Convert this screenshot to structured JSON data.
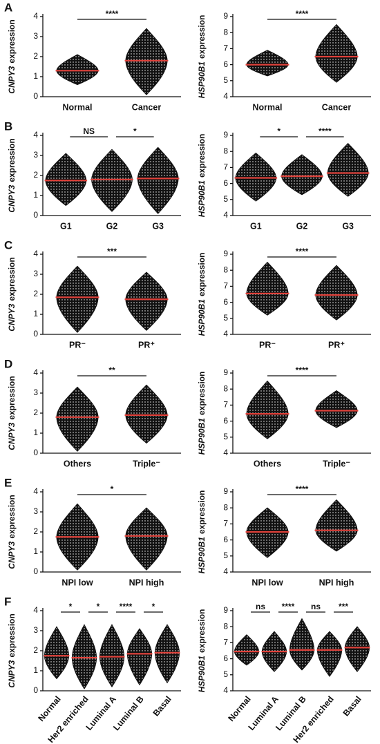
{
  "chart_data": [
    {
      "type": "swarm",
      "panel": "A",
      "ylabel_gene": "CNPY3",
      "ylabel_rest": "expression",
      "categories": [
        "Normal",
        "Cancer"
      ],
      "values": [
        1.3,
        1.8
      ],
      "ranges": [
        [
          0.6,
          2.1
        ],
        [
          0.1,
          3.4
        ]
      ],
      "ylim": [
        0,
        4
      ],
      "yticks": [
        0,
        1,
        2,
        3,
        4
      ],
      "color": "#111111",
      "median_color": "#e0413a",
      "comparisons": [
        {
          "from": "Normal",
          "to": "Cancer",
          "label": "****"
        }
      ]
    },
    {
      "type": "swarm",
      "ylabel_gene": "HSP90B1",
      "ylabel_rest": "expression",
      "categories": [
        "Normal",
        "Cancer"
      ],
      "values": [
        6.0,
        6.5
      ],
      "ranges": [
        [
          5.3,
          6.9
        ],
        [
          4.9,
          8.5
        ]
      ],
      "ylim": [
        4,
        9
      ],
      "yticks": [
        4,
        5,
        6,
        7,
        8,
        9
      ],
      "color": "#111111",
      "median_color": "#e0413a",
      "comparisons": [
        {
          "from": "Normal",
          "to": "Cancer",
          "label": "****"
        }
      ]
    },
    {
      "type": "swarm",
      "panel": "B",
      "ylabel_gene": "CNPY3",
      "ylabel_rest": "expression",
      "categories": [
        "G1",
        "G2",
        "G3"
      ],
      "values": [
        1.75,
        1.8,
        1.85
      ],
      "ranges": [
        [
          0.5,
          3.1
        ],
        [
          0.2,
          3.3
        ],
        [
          0.1,
          3.4
        ]
      ],
      "ylim": [
        0,
        4
      ],
      "yticks": [
        0,
        1,
        2,
        3,
        4
      ],
      "color": "#111111",
      "median_color": "#e0413a",
      "comparisons": [
        {
          "from": "G1",
          "to": "G2",
          "label": "NS"
        },
        {
          "from": "G2",
          "to": "G3",
          "label": "*"
        }
      ]
    },
    {
      "type": "swarm",
      "ylabel_gene": "HSP90B1",
      "ylabel_rest": "expression",
      "categories": [
        "G1",
        "G2",
        "G3"
      ],
      "values": [
        6.35,
        6.45,
        6.65
      ],
      "ranges": [
        [
          4.9,
          7.9
        ],
        [
          5.3,
          7.8
        ],
        [
          5.2,
          8.5
        ]
      ],
      "ylim": [
        4,
        9
      ],
      "yticks": [
        4,
        5,
        6,
        7,
        8,
        9
      ],
      "color": "#111111",
      "median_color": "#e0413a",
      "comparisons": [
        {
          "from": "G1",
          "to": "G2",
          "label": "*"
        },
        {
          "from": "G2",
          "to": "G3",
          "label": "****"
        }
      ]
    },
    {
      "type": "swarm",
      "panel": "C",
      "ylabel_gene": "CNPY3",
      "ylabel_rest": "expression",
      "categories": [
        "PR⁻",
        "PR⁺"
      ],
      "values": [
        1.85,
        1.75
      ],
      "ranges": [
        [
          0.1,
          3.4
        ],
        [
          0.2,
          3.1
        ]
      ],
      "ylim": [
        0,
        4
      ],
      "yticks": [
        0,
        1,
        2,
        3,
        4
      ],
      "color": "#111111",
      "median_color": "#e0413a",
      "comparisons": [
        {
          "from": "PR⁻",
          "to": "PR⁺",
          "label": "***"
        }
      ]
    },
    {
      "type": "swarm",
      "ylabel_gene": "HSP90B1",
      "ylabel_rest": "expression",
      "categories": [
        "PR⁻",
        "PR⁺"
      ],
      "values": [
        6.55,
        6.45
      ],
      "ranges": [
        [
          5.2,
          8.5
        ],
        [
          4.9,
          8.3
        ]
      ],
      "ylim": [
        4,
        9
      ],
      "yticks": [
        4,
        5,
        6,
        7,
        8,
        9
      ],
      "color": "#111111",
      "median_color": "#e0413a",
      "comparisons": [
        {
          "from": "PR⁻",
          "to": "PR⁺",
          "label": "****"
        }
      ]
    },
    {
      "type": "swarm",
      "panel": "D",
      "ylabel_gene": "CNPY3",
      "ylabel_rest": "expression",
      "categories": [
        "Others",
        "Triple⁻"
      ],
      "values": [
        1.8,
        1.9
      ],
      "ranges": [
        [
          0.1,
          3.3
        ],
        [
          0.5,
          3.4
        ]
      ],
      "ylim": [
        0,
        4
      ],
      "yticks": [
        0,
        1,
        2,
        3,
        4
      ],
      "color": "#111111",
      "median_color": "#e0413a",
      "comparisons": [
        {
          "from": "Others",
          "to": "Triple⁻",
          "label": "**"
        }
      ]
    },
    {
      "type": "swarm",
      "ylabel_gene": "HSP90B1",
      "ylabel_rest": "expression",
      "categories": [
        "Others",
        "Triple⁻"
      ],
      "values": [
        6.45,
        6.65
      ],
      "ranges": [
        [
          4.9,
          8.5
        ],
        [
          5.6,
          7.9
        ]
      ],
      "ylim": [
        4,
        9
      ],
      "yticks": [
        4,
        5,
        6,
        7,
        8,
        9
      ],
      "color": "#111111",
      "median_color": "#e0413a",
      "comparisons": [
        {
          "from": "Others",
          "to": "Triple⁻",
          "label": "****"
        }
      ]
    },
    {
      "type": "swarm",
      "panel": "E",
      "ylabel_gene": "CNPY3",
      "ylabel_rest": "expression",
      "categories": [
        "NPI low",
        "NPI high"
      ],
      "values": [
        1.75,
        1.8
      ],
      "ranges": [
        [
          0.1,
          3.4
        ],
        [
          0.1,
          3.2
        ]
      ],
      "ylim": [
        0,
        4
      ],
      "yticks": [
        0,
        1,
        2,
        3,
        4
      ],
      "color": "#111111",
      "median_color": "#e0413a",
      "comparisons": [
        {
          "from": "NPI low",
          "to": "NPI high",
          "label": "*"
        }
      ]
    },
    {
      "type": "swarm",
      "ylabel_gene": "HSP90B1",
      "ylabel_rest": "expression",
      "categories": [
        "NPI low",
        "NPI high"
      ],
      "values": [
        6.5,
        6.6
      ],
      "ranges": [
        [
          4.9,
          8.0
        ],
        [
          5.3,
          8.5
        ]
      ],
      "ylim": [
        4,
        9
      ],
      "yticks": [
        4,
        5,
        6,
        7,
        8,
        9
      ],
      "color": "#111111",
      "median_color": "#e0413a",
      "comparisons": [
        {
          "from": "NPI low",
          "to": "NPI high",
          "label": "****"
        }
      ]
    },
    {
      "type": "swarm",
      "panel": "F",
      "rotate_labels": true,
      "ylabel_gene": "CNPY3",
      "ylabel_rest": "expression",
      "categories": [
        "Normal",
        "Her2 enriched",
        "Luminal A",
        "Luminal B",
        "Basal"
      ],
      "values": [
        1.75,
        1.65,
        1.7,
        1.85,
        1.9
      ],
      "ranges": [
        [
          0.6,
          3.2
        ],
        [
          0.1,
          3.3
        ],
        [
          0.2,
          3.3
        ],
        [
          0.3,
          3.1
        ],
        [
          0.4,
          3.3
        ]
      ],
      "ylim": [
        0,
        4
      ],
      "yticks": [
        0,
        1,
        2,
        3,
        4
      ],
      "color": "#111111",
      "median_color": "#e0413a",
      "comparisons": [
        {
          "from": "Normal",
          "to": "Her2 enriched",
          "label": "*"
        },
        {
          "from": "Her2 enriched",
          "to": "Luminal A",
          "label": "*"
        },
        {
          "from": "Luminal A",
          "to": "Luminal B",
          "label": "****"
        },
        {
          "from": "Luminal B",
          "to": "Basal",
          "label": "*"
        }
      ]
    },
    {
      "type": "swarm",
      "rotate_labels": true,
      "ylabel_gene": "HSP90B1",
      "ylabel_rest": "expression",
      "categories": [
        "Normal",
        "Luminal A",
        "Luminal B",
        "Her2 enriched",
        "Basal"
      ],
      "values": [
        6.45,
        6.45,
        6.55,
        6.55,
        6.7
      ],
      "ranges": [
        [
          5.6,
          7.5
        ],
        [
          5.2,
          7.7
        ],
        [
          5.3,
          8.5
        ],
        [
          4.9,
          7.7
        ],
        [
          5.2,
          8.0
        ]
      ],
      "ylim": [
        4,
        9
      ],
      "yticks": [
        4,
        5,
        6,
        7,
        8,
        9
      ],
      "color": "#111111",
      "median_color": "#e0413a",
      "comparisons": [
        {
          "from": "Normal",
          "to": "Luminal A",
          "label": "ns"
        },
        {
          "from": "Luminal A",
          "to": "Luminal B",
          "label": "****"
        },
        {
          "from": "Luminal B",
          "to": "Her2 enriched",
          "label": "ns"
        },
        {
          "from": "Her2 enriched",
          "to": "Basal",
          "label": "***"
        }
      ]
    }
  ]
}
